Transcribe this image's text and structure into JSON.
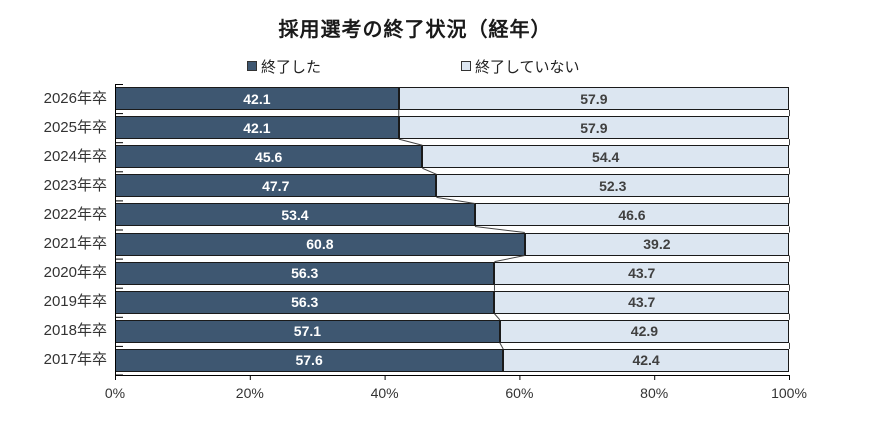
{
  "chart": {
    "title": "採用選考の終了状況（経年）",
    "legend_position": "top",
    "background": "#ffffff"
  },
  "chart_data": {
    "type": "bar",
    "orientation": "horizontal",
    "stacked": true,
    "title": "採用選考の終了状況（経年）",
    "categories": [
      "2026年卒",
      "2025年卒",
      "2024年卒",
      "2023年卒",
      "2022年卒",
      "2021年卒",
      "2020年卒",
      "2019年卒",
      "2018年卒",
      "2017年卒"
    ],
    "series": [
      {
        "name": "終了した",
        "color": "#3E5771",
        "label_color": "#FFFFFF",
        "values": [
          42.1,
          42.1,
          45.6,
          47.7,
          53.4,
          60.8,
          56.3,
          56.3,
          57.1,
          57.6
        ]
      },
      {
        "name": "終了していない",
        "color": "#DCE6F1",
        "label_color": "#404040",
        "values": [
          57.9,
          57.9,
          54.4,
          52.3,
          46.6,
          39.2,
          43.7,
          43.7,
          42.9,
          42.4
        ]
      }
    ],
    "xlim": [
      0,
      100
    ],
    "x_ticks": [
      "0%",
      "20%",
      "40%",
      "60%",
      "80%",
      "100%"
    ],
    "grid": false,
    "series_connector_lines": true,
    "axis_color": "#000000"
  }
}
